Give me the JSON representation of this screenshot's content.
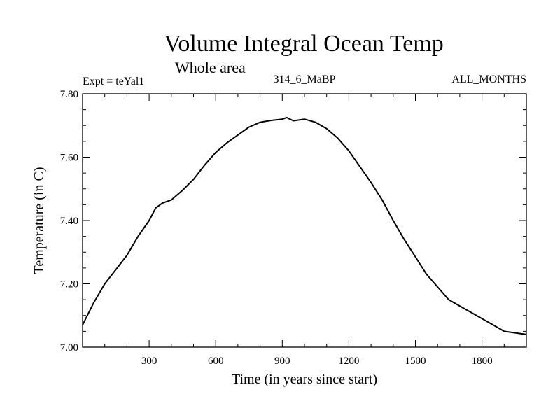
{
  "chart_data": {
    "type": "line",
    "title": "Volume Integral Ocean Temp",
    "subtitle": "Whole area",
    "experiment_label": "Expt = teYal1",
    "period_label": "314_6_MaBP",
    "months_label": "ALL_MONTHS",
    "xlabel": "Time (in years since start)",
    "ylabel": "Temperature (in C)",
    "xlim": [
      0,
      2000
    ],
    "ylim": [
      7.0,
      7.8
    ],
    "x_ticks": [
      300,
      600,
      900,
      1200,
      1500,
      1800
    ],
    "x_tick_labels": [
      "300",
      "600",
      "900",
      "1200",
      "1500",
      "1800"
    ],
    "y_ticks": [
      7.0,
      7.2,
      7.4,
      7.6,
      7.8
    ],
    "y_tick_labels": [
      "7.00",
      "7.20",
      "7.40",
      "7.60",
      "7.80"
    ],
    "grid": false,
    "series": [
      {
        "name": "Volume integral ocean temperature",
        "color": "#000000",
        "x": [
          0,
          50,
          100,
          150,
          200,
          250,
          300,
          330,
          360,
          400,
          450,
          500,
          550,
          600,
          650,
          700,
          750,
          800,
          850,
          900,
          920,
          950,
          1000,
          1050,
          1100,
          1150,
          1200,
          1250,
          1300,
          1350,
          1400,
          1450,
          1500,
          1550,
          1600,
          1650,
          1700,
          1750,
          1800,
          1850,
          1900,
          1950,
          2000
        ],
        "values": [
          7.07,
          7.14,
          7.2,
          7.245,
          7.29,
          7.35,
          7.4,
          7.44,
          7.455,
          7.465,
          7.495,
          7.53,
          7.575,
          7.615,
          7.645,
          7.67,
          7.695,
          7.71,
          7.716,
          7.72,
          7.725,
          7.715,
          7.72,
          7.71,
          7.69,
          7.66,
          7.62,
          7.57,
          7.52,
          7.465,
          7.4,
          7.34,
          7.285,
          7.23,
          7.19,
          7.15,
          7.13,
          7.11,
          7.09,
          7.07,
          7.05,
          7.045,
          7.04
        ]
      }
    ]
  }
}
